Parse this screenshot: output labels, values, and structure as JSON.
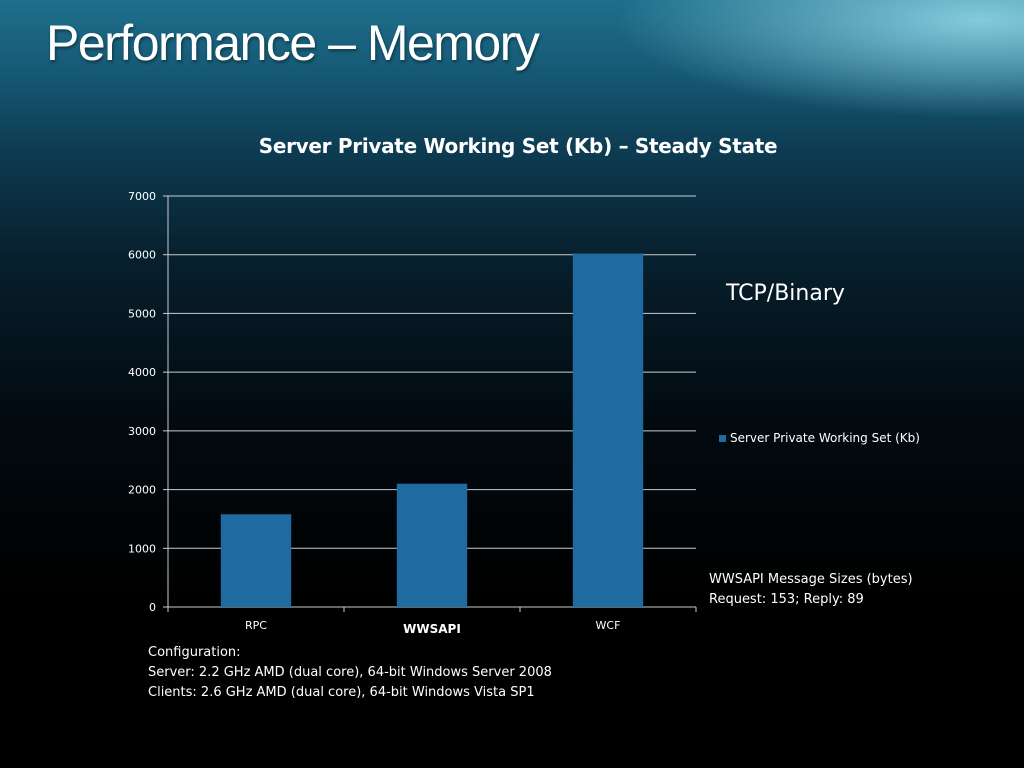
{
  "slide": {
    "title": "Performance – Memory"
  },
  "annotations": {
    "tcp_label": "TCP/Binary",
    "message_sizes_title": "WWSAPI Message Sizes (bytes)",
    "message_sizes_values": "Request: 153; Reply: 89"
  },
  "configuration": {
    "heading": "Configuration:",
    "server": "Server: 2.2 GHz AMD (dual core), 64-bit Windows Server 2008",
    "clients": "Clients: 2.6 GHz AMD (dual core), 64-bit Windows Vista SP1"
  },
  "colors": {
    "bar": "#1f6aa0",
    "gridline": "#c8ccd0",
    "text": "#ffffff"
  },
  "chart_data": {
    "type": "bar",
    "title": "Server Private Working Set (Kb) – Steady State",
    "xlabel": "",
    "ylabel": "",
    "categories": [
      "RPC",
      "WWSAPI",
      "WCF"
    ],
    "highlighted_category": "WWSAPI",
    "series": [
      {
        "name": "Server Private Working Set (Kb)",
        "values": [
          1580,
          2100,
          6020
        ]
      }
    ],
    "ylim": [
      0,
      7000
    ],
    "yticks": [
      "0",
      "1000",
      "2000",
      "3000",
      "4000",
      "5000",
      "6000",
      "7000"
    ],
    "grid": true,
    "legend": "right"
  }
}
